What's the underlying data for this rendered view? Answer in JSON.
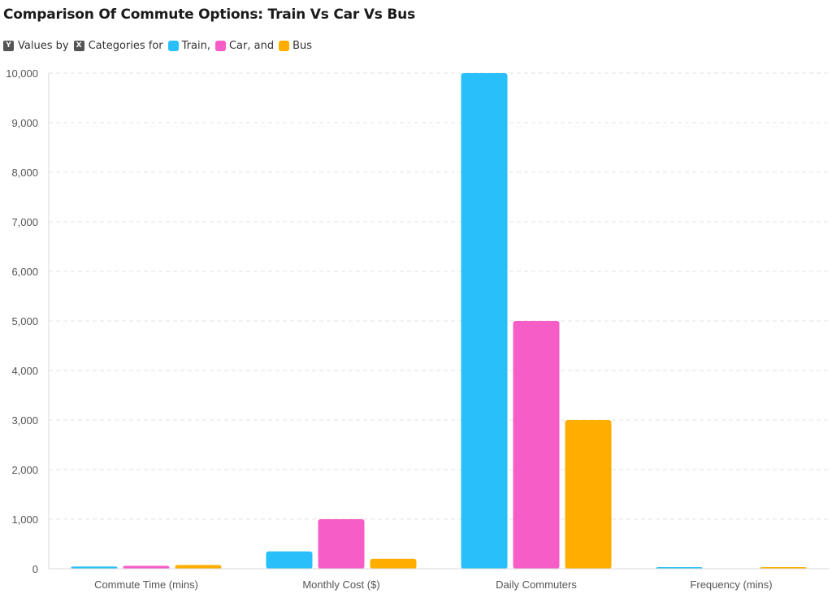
{
  "title": "Comparison Of Commute Options: Train Vs Car Vs Bus",
  "legend": {
    "y_key": "Y",
    "y_text": "Values by",
    "x_key": "X",
    "x_text": "Categories for",
    "items": [
      {
        "label": "Train,",
        "color": "#29bffa"
      },
      {
        "label": "Car, and",
        "color": "#f75dc6"
      },
      {
        "label": "Bus",
        "color": "#ffae00"
      }
    ]
  },
  "chart_data": {
    "type": "bar",
    "title": "Comparison Of Commute Options: Train Vs Car Vs Bus",
    "categories": [
      "Commute Time (mins)",
      "Monthly Cost ($)",
      "Daily Commuters",
      "Frequency (mins)"
    ],
    "series": [
      {
        "name": "Train",
        "color": "#29bffa",
        "values": [
          45,
          350,
          10000,
          15
        ]
      },
      {
        "name": "Car",
        "color": "#f75dc6",
        "values": [
          60,
          1000,
          5000,
          0
        ]
      },
      {
        "name": "Bus",
        "color": "#ffae00",
        "values": [
          75,
          200,
          3000,
          20
        ]
      }
    ],
    "y_ticks": [
      "0",
      "1,000",
      "2,000",
      "3,000",
      "4,000",
      "5,000",
      "6,000",
      "7,000",
      "8,000",
      "9,000",
      "10,000"
    ],
    "ylim": [
      0,
      10000
    ],
    "grid": true,
    "legend_position": "top-left"
  }
}
